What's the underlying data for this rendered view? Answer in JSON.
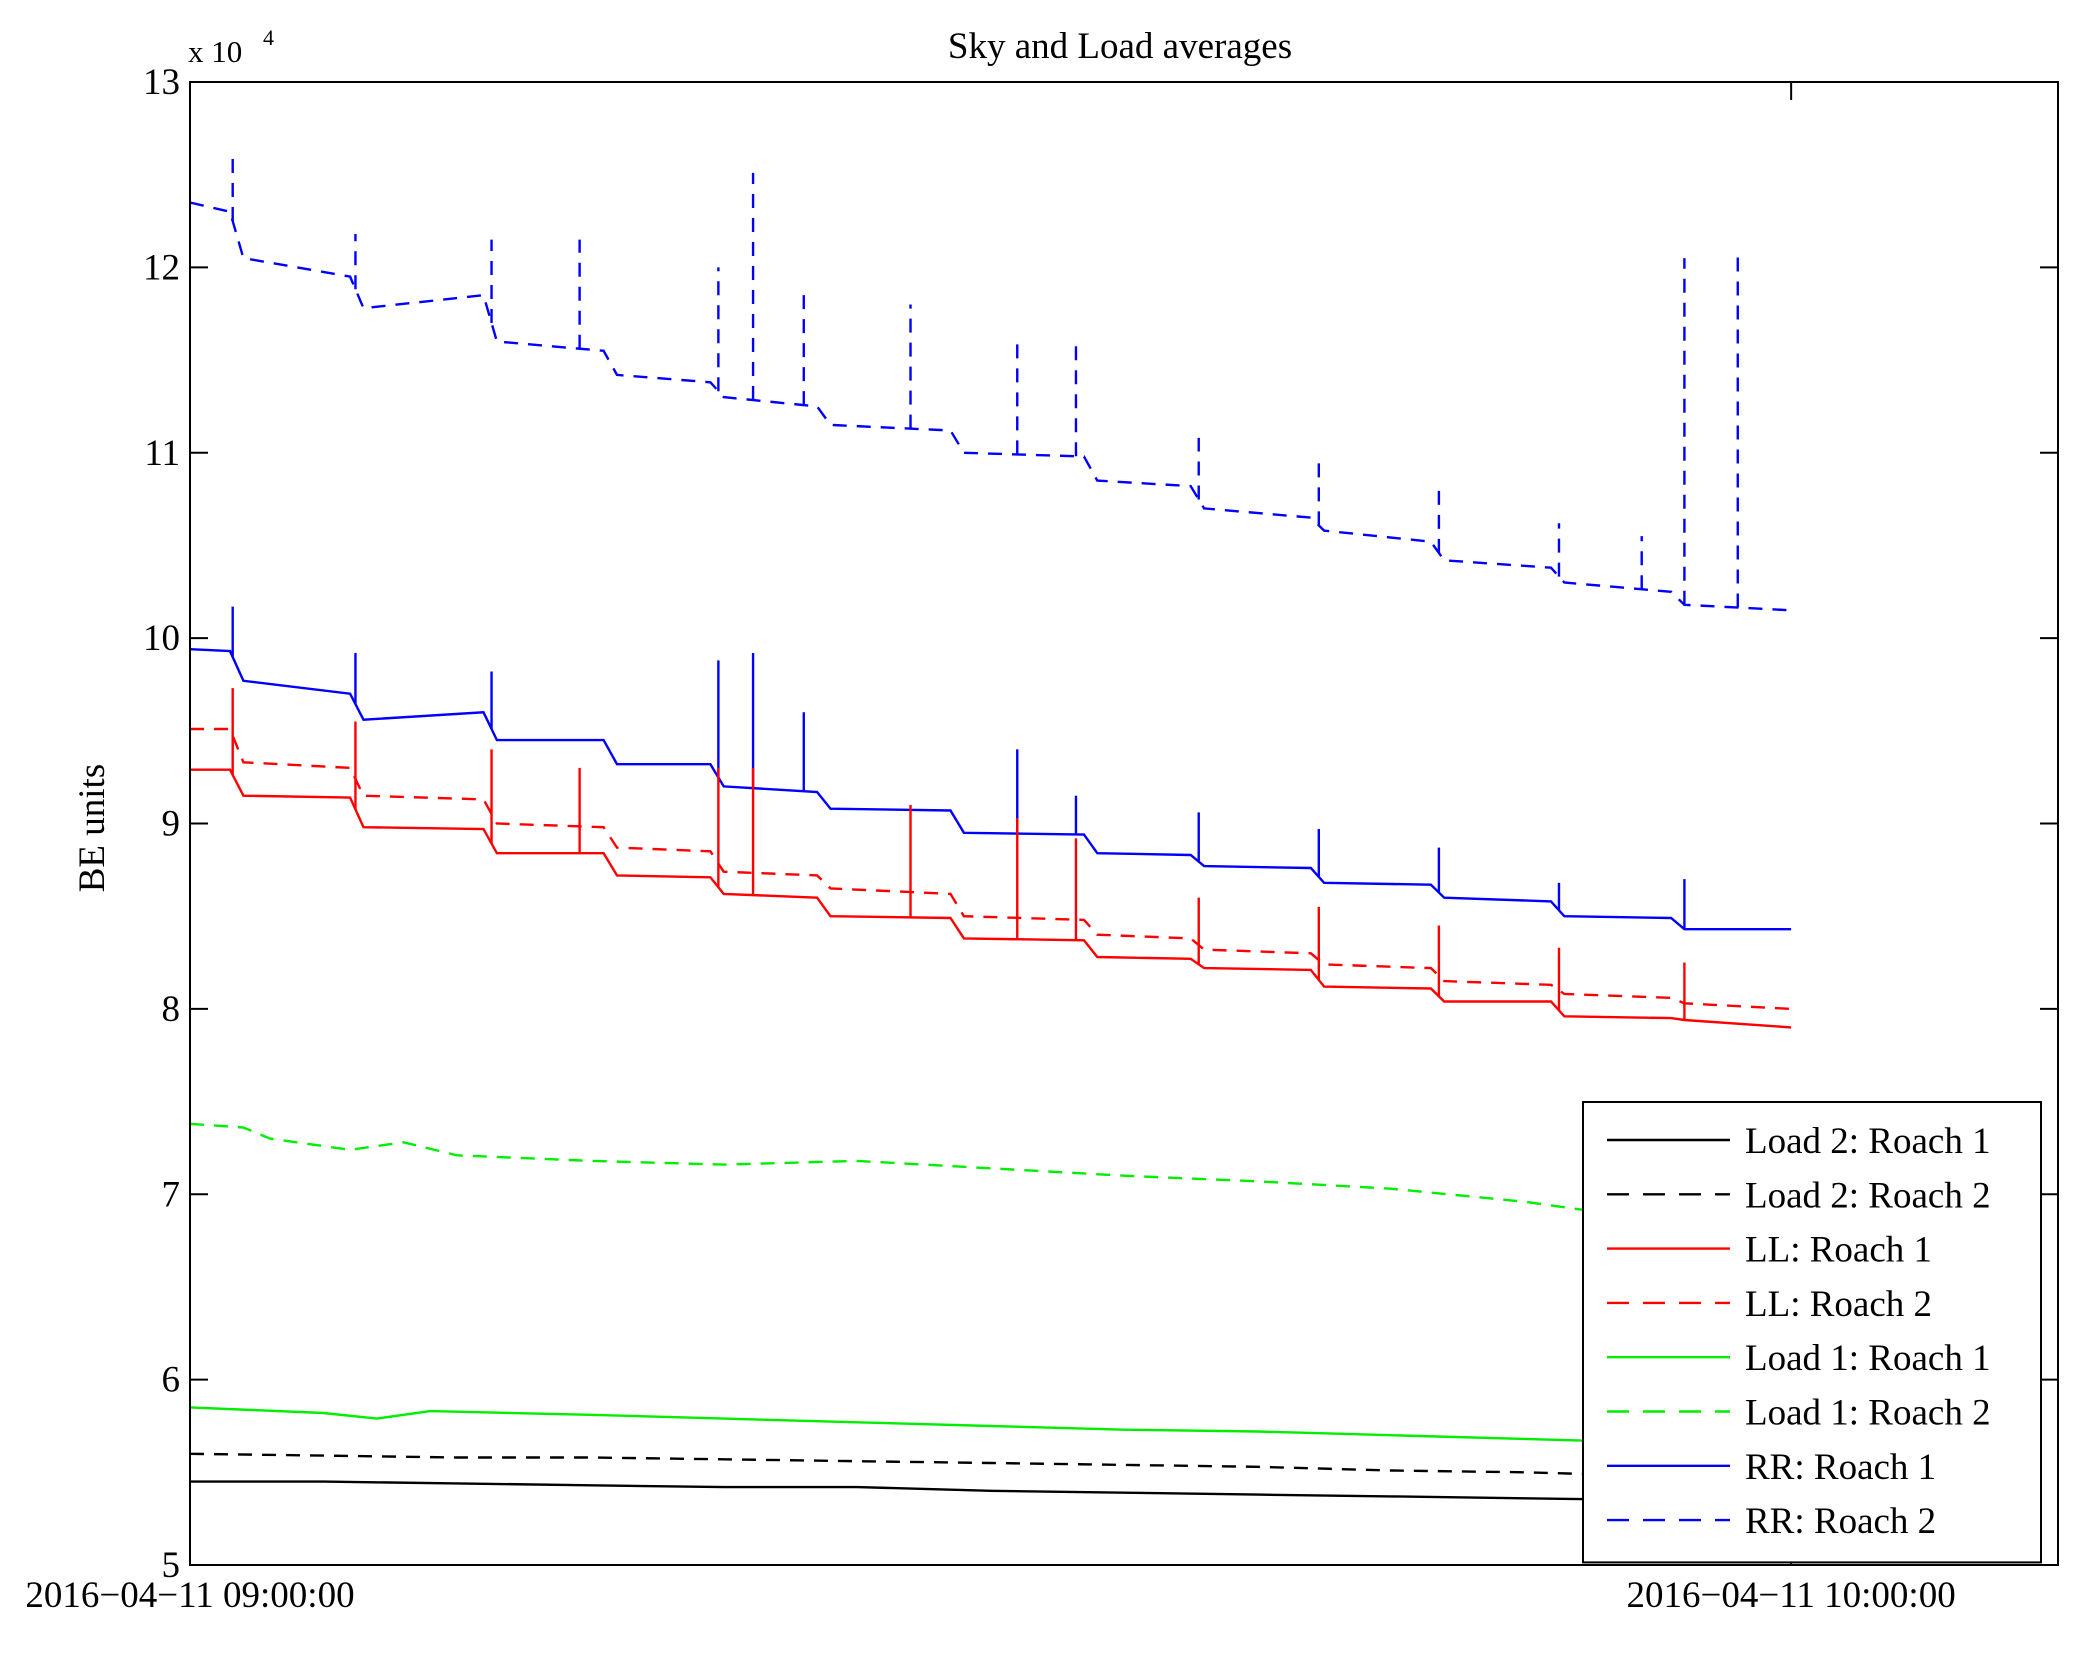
{
  "chart_data": {
    "type": "line",
    "title": "Sky and Load averages",
    "ylabel": "BE units",
    "xlabel": "",
    "y_scale_label": {
      "base": "x 10",
      "exponent": "4"
    },
    "ylim": [
      5,
      13
    ],
    "yticks": [
      5,
      6,
      7,
      8,
      9,
      10,
      11,
      12,
      13
    ],
    "xlim": [
      0,
      70
    ],
    "xticks": [
      {
        "value": 0,
        "label": "2016−04−11 09:00:00"
      },
      {
        "value": 60,
        "label": "2016−04−11 10:00:00"
      }
    ],
    "x_units": "minutes after 2016-04-11 09:00:00",
    "grid": false,
    "legend_position": "bottom-right",
    "series": [
      {
        "name": "Load 2: Roach 1",
        "color": "#000000",
        "dash": "solid",
        "x": [
          0,
          5,
          10,
          15,
          20,
          25,
          30,
          35,
          40,
          45,
          50,
          55,
          60
        ],
        "y": [
          5.45,
          5.45,
          5.44,
          5.43,
          5.42,
          5.42,
          5.4,
          5.39,
          5.38,
          5.37,
          5.36,
          5.35,
          5.34
        ]
      },
      {
        "name": "Load 2: Roach 2",
        "color": "#000000",
        "dash": "dashed",
        "x": [
          0,
          5,
          10,
          15,
          20,
          25,
          30,
          35,
          40,
          45,
          50,
          55,
          60
        ],
        "y": [
          5.6,
          5.59,
          5.58,
          5.58,
          5.57,
          5.56,
          5.55,
          5.54,
          5.53,
          5.51,
          5.5,
          5.48,
          5.46
        ]
      },
      {
        "name": "LL: Roach 1",
        "color": "#ff0000",
        "dash": "solid",
        "x": [
          0,
          1.5,
          2,
          6,
          6.5,
          11,
          11.5,
          15.5,
          16,
          19.5,
          20,
          23.5,
          24,
          28.5,
          29,
          33.5,
          34,
          37.5,
          38,
          42,
          42.5,
          46.5,
          47,
          51,
          51.5,
          55.5,
          56,
          60
        ],
        "y": [
          9.29,
          9.29,
          9.15,
          9.14,
          8.98,
          8.97,
          8.84,
          8.84,
          8.72,
          8.71,
          8.62,
          8.6,
          8.5,
          8.49,
          8.38,
          8.37,
          8.28,
          8.27,
          8.22,
          8.21,
          8.12,
          8.11,
          8.04,
          8.04,
          7.96,
          7.95,
          7.94,
          7.9
        ]
      },
      {
        "name": "LL: Roach 2",
        "color": "#ff0000",
        "dash": "dashed",
        "x": [
          0,
          1.5,
          2,
          6,
          6.5,
          11,
          11.5,
          15.5,
          16,
          19.5,
          20,
          23.5,
          24,
          28.5,
          29,
          33.5,
          34,
          37.5,
          38,
          42,
          42.5,
          46.5,
          47,
          51,
          51.5,
          55.5,
          56,
          60
        ],
        "y": [
          9.51,
          9.51,
          9.33,
          9.3,
          9.15,
          9.13,
          9.0,
          8.98,
          8.87,
          8.85,
          8.74,
          8.72,
          8.65,
          8.62,
          8.5,
          8.48,
          8.4,
          8.38,
          8.32,
          8.3,
          8.24,
          8.22,
          8.15,
          8.13,
          8.08,
          8.06,
          8.03,
          8.0
        ]
      },
      {
        "name": "Load 1: Roach 1",
        "color": "#00ee00",
        "dash": "solid",
        "x": [
          0,
          5,
          7,
          9,
          15,
          20,
          25,
          30,
          35,
          40,
          45,
          50,
          55,
          58
        ],
        "y": [
          5.85,
          5.82,
          5.79,
          5.83,
          5.81,
          5.79,
          5.77,
          5.75,
          5.73,
          5.72,
          5.7,
          5.68,
          5.66,
          5.64
        ]
      },
      {
        "name": "Load 1: Roach 2",
        "color": "#00ee00",
        "dash": "dashed",
        "x": [
          0,
          2,
          3,
          6,
          8,
          10,
          15,
          20,
          25,
          30,
          35,
          40,
          45,
          50,
          53,
          55,
          57,
          58
        ],
        "y": [
          7.38,
          7.36,
          7.3,
          7.24,
          7.28,
          7.21,
          7.18,
          7.16,
          7.18,
          7.14,
          7.1,
          7.07,
          7.03,
          6.96,
          6.9,
          6.94,
          6.93,
          6.9
        ]
      },
      {
        "name": "RR: Roach 1",
        "color": "#0000ff",
        "dash": "solid",
        "x": [
          0,
          1.5,
          2,
          6,
          6.5,
          11,
          11.5,
          15.5,
          16,
          19.5,
          20,
          23.5,
          24,
          28.5,
          29,
          33.5,
          34,
          37.5,
          38,
          42,
          42.5,
          46.5,
          47,
          51,
          51.5,
          55.5,
          56,
          60
        ],
        "y": [
          9.94,
          9.93,
          9.77,
          9.7,
          9.56,
          9.6,
          9.45,
          9.45,
          9.32,
          9.32,
          9.2,
          9.17,
          9.08,
          9.07,
          8.95,
          8.94,
          8.84,
          8.83,
          8.77,
          8.76,
          8.68,
          8.67,
          8.6,
          8.58,
          8.5,
          8.49,
          8.43,
          8.43
        ]
      },
      {
        "name": "RR: Roach 2",
        "color": "#0000ff",
        "dash": "dashed",
        "x": [
          0,
          1.5,
          2,
          6,
          6.5,
          11,
          11.5,
          15.5,
          16,
          19.5,
          20,
          23.5,
          24,
          28.5,
          29,
          33.5,
          34,
          37.5,
          38,
          42,
          42.5,
          46.5,
          47,
          51,
          51.5,
          55.5,
          56,
          60
        ],
        "y": [
          12.35,
          12.3,
          12.05,
          11.95,
          11.78,
          11.85,
          11.6,
          11.55,
          11.42,
          11.38,
          11.3,
          11.25,
          11.15,
          11.12,
          11.0,
          10.98,
          10.85,
          10.82,
          10.7,
          10.65,
          10.58,
          10.52,
          10.42,
          10.38,
          10.3,
          10.25,
          10.18,
          10.15
        ]
      }
    ],
    "spikes": [
      {
        "series": "RR: Roach 2",
        "x": 1.6,
        "peak": 12.62
      },
      {
        "series": "RR: Roach 2",
        "x": 6.2,
        "peak": 12.18
      },
      {
        "series": "RR: Roach 2",
        "x": 11.3,
        "peak": 12.15
      },
      {
        "series": "RR: Roach 2",
        "x": 14.6,
        "peak": 12.15
      },
      {
        "series": "RR: Roach 2",
        "x": 19.8,
        "peak": 12.0
      },
      {
        "series": "RR: Roach 2",
        "x": 21.1,
        "peak": 12.51
      },
      {
        "series": "RR: Roach 2",
        "x": 23.0,
        "peak": 11.9
      },
      {
        "series": "RR: Roach 2",
        "x": 27.0,
        "peak": 11.8
      },
      {
        "series": "RR: Roach 2",
        "x": 31.0,
        "peak": 11.6
      },
      {
        "series": "RR: Roach 2",
        "x": 33.2,
        "peak": 11.6
      },
      {
        "series": "RR: Roach 2",
        "x": 37.8,
        "peak": 11.08
      },
      {
        "series": "RR: Roach 2",
        "x": 42.3,
        "peak": 10.97
      },
      {
        "series": "RR: Roach 2",
        "x": 46.8,
        "peak": 10.8
      },
      {
        "series": "RR: Roach 2",
        "x": 51.3,
        "peak": 10.62
      },
      {
        "series": "RR: Roach 2",
        "x": 54.4,
        "peak": 10.55
      },
      {
        "series": "RR: Roach 2",
        "x": 56.0,
        "peak": 12.05
      },
      {
        "series": "RR: Roach 2",
        "x": 58.0,
        "peak": 12.07
      },
      {
        "series": "RR: Roach 1",
        "x": 1.6,
        "peak": 10.17
      },
      {
        "series": "RR: Roach 1",
        "x": 6.2,
        "peak": 9.92
      },
      {
        "series": "RR: Roach 1",
        "x": 11.3,
        "peak": 9.82
      },
      {
        "series": "RR: Roach 1",
        "x": 19.8,
        "peak": 9.88
      },
      {
        "series": "RR: Roach 1",
        "x": 21.1,
        "peak": 9.92
      },
      {
        "series": "RR: Roach 1",
        "x": 23.0,
        "peak": 9.6
      },
      {
        "series": "RR: Roach 1",
        "x": 31.0,
        "peak": 9.4
      },
      {
        "series": "RR: Roach 1",
        "x": 33.2,
        "peak": 9.15
      },
      {
        "series": "RR: Roach 1",
        "x": 37.8,
        "peak": 9.06
      },
      {
        "series": "RR: Roach 1",
        "x": 42.3,
        "peak": 8.97
      },
      {
        "series": "RR: Roach 1",
        "x": 46.8,
        "peak": 8.87
      },
      {
        "series": "RR: Roach 1",
        "x": 51.3,
        "peak": 8.68
      },
      {
        "series": "RR: Roach 1",
        "x": 56.0,
        "peak": 8.7
      },
      {
        "series": "LL: Roach 1",
        "x": 1.6,
        "peak": 9.73
      },
      {
        "series": "LL: Roach 1",
        "x": 6.2,
        "peak": 9.55
      },
      {
        "series": "LL: Roach 1",
        "x": 11.3,
        "peak": 9.4
      },
      {
        "series": "LL: Roach 1",
        "x": 14.6,
        "peak": 9.3
      },
      {
        "series": "LL: Roach 1",
        "x": 19.8,
        "peak": 9.3
      },
      {
        "series": "LL: Roach 1",
        "x": 21.1,
        "peak": 9.3
      },
      {
        "series": "LL: Roach 1",
        "x": 27.0,
        "peak": 9.1
      },
      {
        "series": "LL: Roach 1",
        "x": 31.0,
        "peak": 9.03
      },
      {
        "series": "LL: Roach 1",
        "x": 33.2,
        "peak": 8.92
      },
      {
        "series": "LL: Roach 1",
        "x": 37.8,
        "peak": 8.6
      },
      {
        "series": "LL: Roach 1",
        "x": 42.3,
        "peak": 8.55
      },
      {
        "series": "LL: Roach 1",
        "x": 46.8,
        "peak": 8.45
      },
      {
        "series": "LL: Roach 1",
        "x": 51.3,
        "peak": 8.33
      },
      {
        "series": "LL: Roach 1",
        "x": 56.0,
        "peak": 8.25
      }
    ],
    "legend": [
      {
        "label": "Load 2: Roach 1",
        "color": "#000000",
        "dash": "solid"
      },
      {
        "label": "Load 2: Roach 2",
        "color": "#000000",
        "dash": "dashed"
      },
      {
        "label": "LL: Roach 1",
        "color": "#ff0000",
        "dash": "solid"
      },
      {
        "label": "LL: Roach 2",
        "color": "#ff0000",
        "dash": "dashed"
      },
      {
        "label": "Load 1: Roach 1",
        "color": "#00ee00",
        "dash": "solid"
      },
      {
        "label": "Load 1: Roach 2",
        "color": "#00ee00",
        "dash": "dashed"
      },
      {
        "label": "RR: Roach 1",
        "color": "#0000ff",
        "dash": "solid"
      },
      {
        "label": "RR: Roach 2",
        "color": "#0000ff",
        "dash": "dashed"
      }
    ]
  }
}
